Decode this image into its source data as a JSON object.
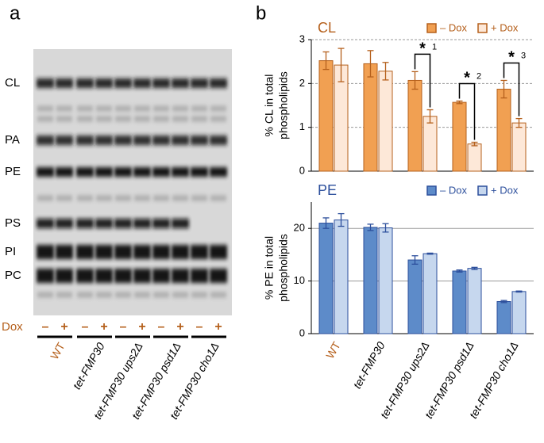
{
  "panel_a": {
    "label": "a",
    "bands": [
      "CL",
      "PA",
      "PE",
      "PS",
      "PI",
      "PC"
    ],
    "dox_label": "Dox",
    "signs": [
      "–",
      "+"
    ],
    "lanes": [
      "WT",
      "tet-FMP30",
      "tet-FMP30 ups2Δ",
      "tet-FMP30 psd1Δ",
      "tet-FMP30 cho1Δ"
    ]
  },
  "panel_b_label": "b",
  "chart_data": [
    {
      "type": "bar",
      "title": "CL",
      "y_label": [
        "% CL in total",
        "phospholipids"
      ],
      "ylim": [
        0,
        3
      ],
      "yticks": [
        0,
        1,
        2,
        3
      ],
      "grid": true,
      "legend": "top-right",
      "edge_color": "#b5601c",
      "series": [
        {
          "name": "– Dox",
          "color": "#f1a052",
          "values": [
            2.52,
            2.45,
            2.07,
            1.57,
            1.87
          ],
          "errors": [
            0.2,
            0.3,
            0.2,
            0.03,
            0.2
          ]
        },
        {
          "name": "+ Dox",
          "color": "#fde8d8",
          "values": [
            2.42,
            2.28,
            1.25,
            0.62,
            1.1
          ],
          "errors": [
            0.38,
            0.2,
            0.15,
            0.04,
            0.1
          ]
        }
      ],
      "annotations": [
        {
          "star": "*",
          "note": "1"
        },
        {
          "star": "*",
          "note": "2"
        },
        {
          "star": "*",
          "note": "3"
        }
      ]
    },
    {
      "type": "bar",
      "title": "PE",
      "y_label": [
        "% PE in total",
        "phospholipids"
      ],
      "categories": [
        "WT",
        "tet-FMP30",
        "tet-FMP30 ups2Δ",
        "tet-FMP30 psd1Δ",
        "tet-FMP30 cho1Δ"
      ],
      "ylim": [
        0,
        25
      ],
      "yticks": [
        0,
        10,
        20
      ],
      "grid": true,
      "legend": "top-right",
      "edge_color": "#2c4f9c",
      "series": [
        {
          "name": "– Dox",
          "color": "#5d8bc9",
          "values": [
            21.0,
            20.2,
            14.0,
            11.9,
            6.1
          ],
          "errors": [
            1.0,
            0.6,
            0.8,
            0.2,
            0.2
          ]
        },
        {
          "name": "+ Dox",
          "color": "#c6d7ee",
          "values": [
            21.6,
            20.1,
            15.2,
            12.4,
            8.0
          ],
          "errors": [
            1.2,
            0.8,
            0.1,
            0.2,
            0.1
          ]
        }
      ]
    }
  ]
}
